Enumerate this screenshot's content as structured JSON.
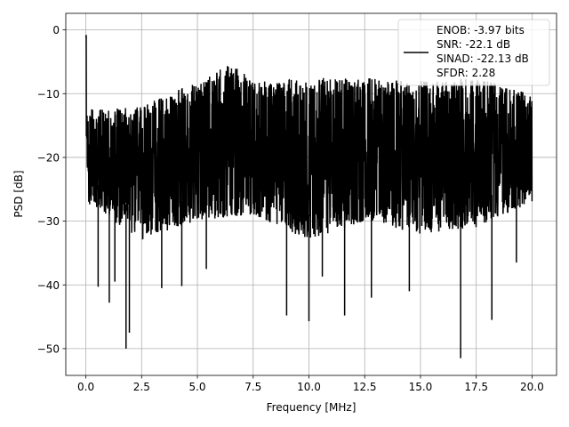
{
  "chart_data": {
    "type": "line",
    "title": "",
    "xlabel": "Frequency [MHz]",
    "ylabel": "PSD [dB]",
    "xlim": [
      -0.9,
      21.1
    ],
    "ylim": [
      -54.2,
      2.6
    ],
    "xticks": [
      0.0,
      2.5,
      5.0,
      7.5,
      10.0,
      12.5,
      15.0,
      17.5,
      20.0
    ],
    "xtick_labels": [
      "0.0",
      "2.5",
      "5.0",
      "7.5",
      "10.0",
      "12.5",
      "15.0",
      "17.5",
      "20.0"
    ],
    "yticks": [
      0,
      -10,
      -20,
      -30,
      -40,
      -50
    ],
    "ytick_labels": [
      "0",
      "−10",
      "−20",
      "−30",
      "−40",
      "−50"
    ],
    "grid": true,
    "legend_position": "top-right",
    "legend": {
      "line_color": "#000000",
      "lines": [
        "ENOB: -3.97 bits",
        "SNR: -22.1 dB",
        "SINAD: -22.13 dB",
        "SFDR: 2.28"
      ]
    },
    "series": [
      {
        "color": "#000000",
        "description": "dense noisy power spectral density trace from 0 to 20 MHz, fluctuating between roughly -12 and -35 dB with occasional deep notches",
        "peak": {
          "x": 0.0,
          "y": 0.0
        },
        "x_range": [
          0.0,
          20.0
        ],
        "upper_envelope": {
          "x": [
            0,
            0.5,
            2.5,
            5,
            6.5,
            7.5,
            10,
            12.5,
            15,
            17.5,
            20
          ],
          "y": [
            -12,
            -12.5,
            -12,
            -8,
            -5,
            -8,
            -7.5,
            -7.5,
            -8,
            -7.5,
            -10
          ]
        },
        "lower_envelope": {
          "x": [
            0,
            2.5,
            5,
            7.5,
            10,
            12.5,
            15,
            17.5,
            20
          ],
          "y": [
            -27,
            -33,
            -30,
            -29,
            -33,
            -30,
            -32,
            -31,
            -27
          ]
        },
        "notable_dips": [
          {
            "x": 0.55,
            "y": -40.3
          },
          {
            "x": 1.05,
            "y": -42.8
          },
          {
            "x": 1.3,
            "y": -39.5
          },
          {
            "x": 1.8,
            "y": -50.0
          },
          {
            "x": 1.95,
            "y": -47.5
          },
          {
            "x": 3.4,
            "y": -40.5
          },
          {
            "x": 4.3,
            "y": -40.2
          },
          {
            "x": 5.4,
            "y": -37.5
          },
          {
            "x": 9.0,
            "y": -44.8
          },
          {
            "x": 10.0,
            "y": -45.7
          },
          {
            "x": 10.6,
            "y": -38.7
          },
          {
            "x": 11.6,
            "y": -44.8
          },
          {
            "x": 12.8,
            "y": -42.0
          },
          {
            "x": 14.5,
            "y": -41.0
          },
          {
            "x": 16.8,
            "y": -51.5
          },
          {
            "x": 18.2,
            "y": -45.5
          },
          {
            "x": 19.3,
            "y": -36.5
          }
        ]
      }
    ]
  }
}
